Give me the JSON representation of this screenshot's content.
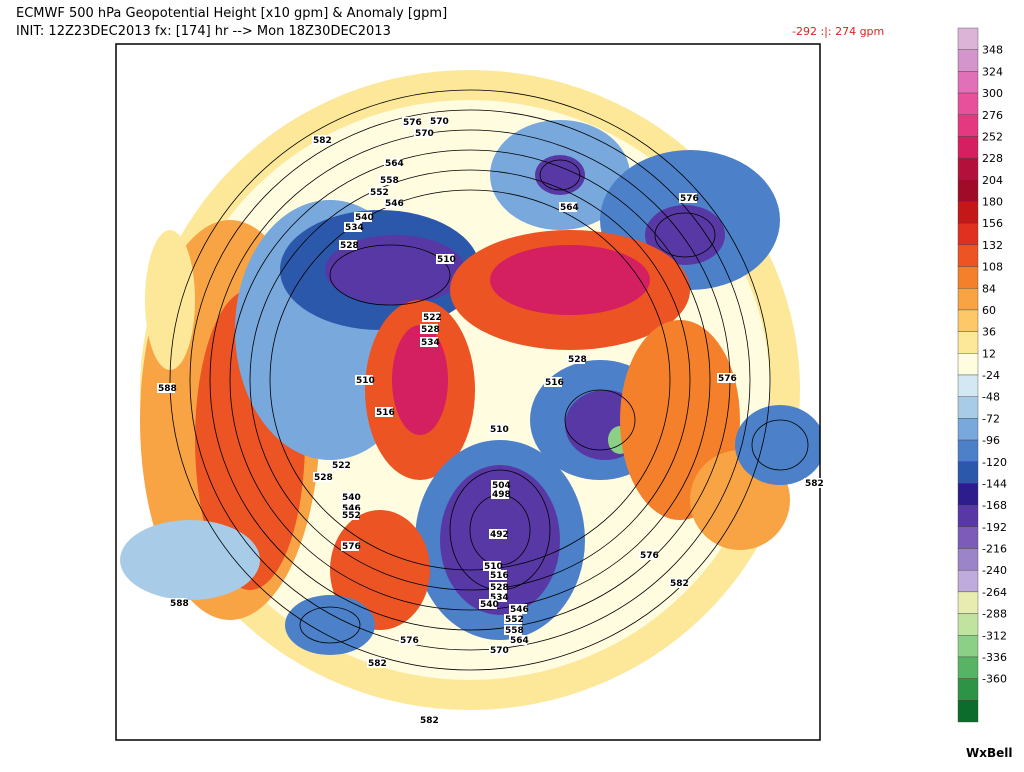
{
  "header": {
    "title": "ECMWF 500 hPa Geopotential Height [x10 gpm] & Anomaly [gpm]",
    "init": "INIT: 12Z23DEC2013 fx: [174] hr --> Mon 18Z30DEC2013",
    "extremes": "-292 :|:  274 gpm"
  },
  "colorbar": {
    "labels": [
      348,
      324,
      300,
      276,
      252,
      228,
      204,
      180,
      156,
      132,
      108,
      84,
      60,
      36,
      12,
      -24,
      -48,
      -72,
      -96,
      -120,
      -144,
      -168,
      -192,
      -216,
      -240,
      -264,
      -288,
      -312,
      -336,
      -360
    ],
    "colors": [
      "#dcb4d8",
      "#d494cc",
      "#e070b8",
      "#e8509c",
      "#e43880",
      "#d42060",
      "#b4103c",
      "#a00c28",
      "#c41818",
      "#e03020",
      "#ec5424",
      "#f4802c",
      "#f8a444",
      "#fcc868",
      "#fce898",
      "#fffce0",
      "#d4e8f4",
      "#a8cce8",
      "#78a8dc",
      "#4c80c8",
      "#2c58ac",
      "#2c1c8c",
      "#5838a4",
      "#7c5cb8",
      "#9c84c8",
      "#c0acdc",
      "#e8ecb0",
      "#c0e4a0",
      "#8cd088",
      "#58b464",
      "#2c9444",
      "#0c6c2c"
    ]
  },
  "map": {
    "contour_labels": [
      576,
      570,
      582,
      564,
      558,
      552,
      546,
      540,
      534,
      528,
      510,
      522,
      528,
      534,
      588,
      510,
      516,
      522,
      528,
      540,
      546,
      552,
      576,
      570,
      564,
      576,
      516,
      528,
      510,
      504,
      498,
      492,
      510,
      516,
      528,
      534,
      540,
      546,
      552,
      558,
      564,
      570,
      576,
      582,
      582,
      576,
      582,
      588,
      582,
      576
    ]
  },
  "logo": "WxBell"
}
